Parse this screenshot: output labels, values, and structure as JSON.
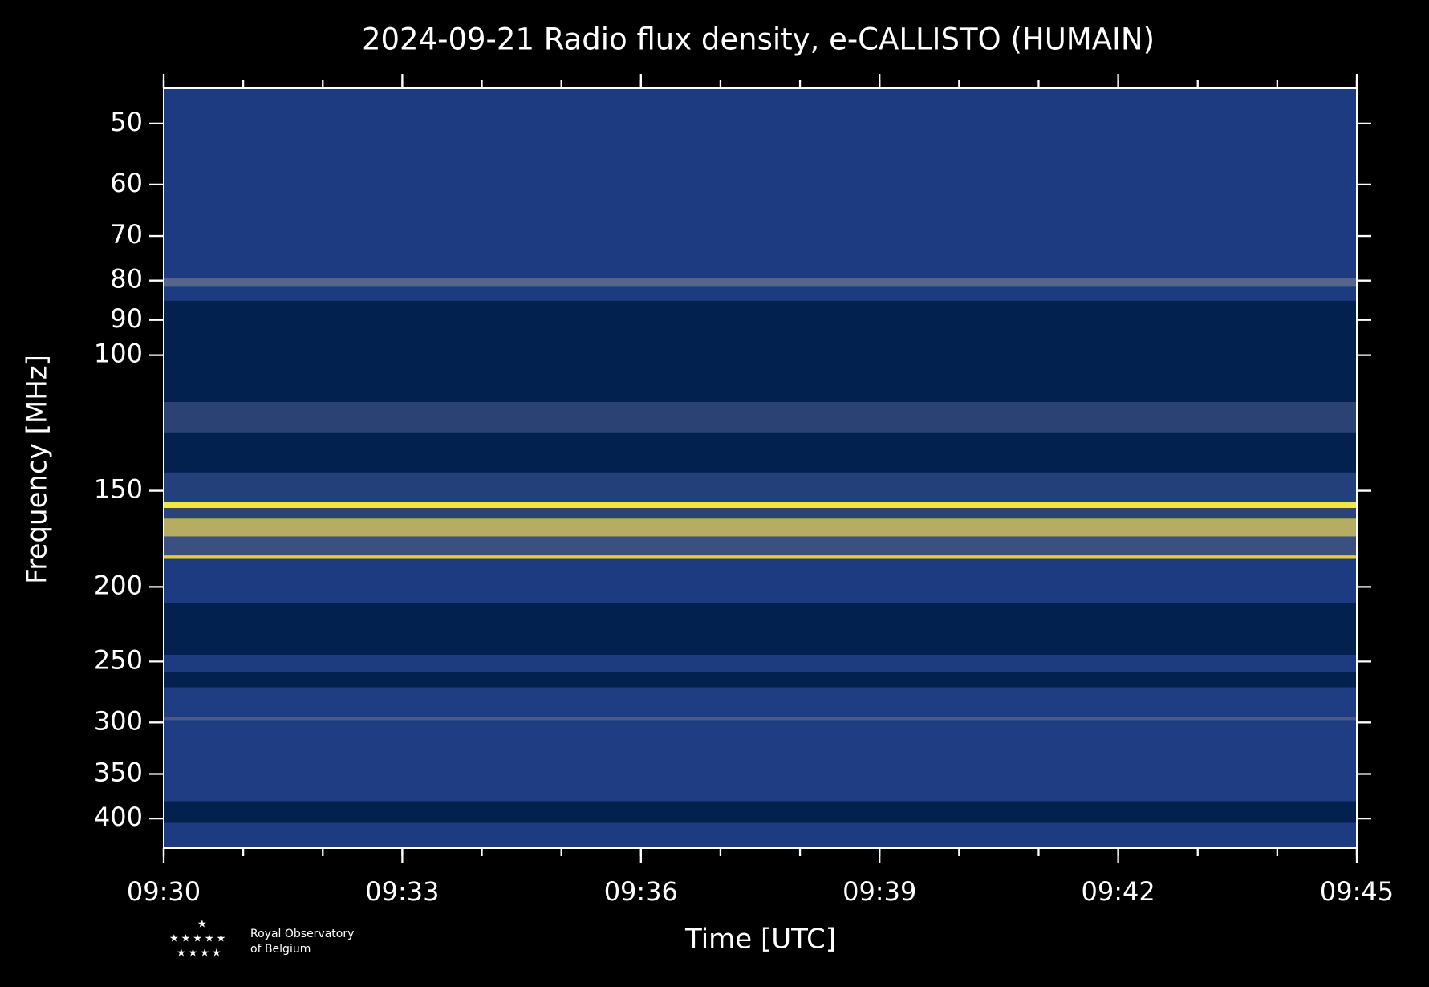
{
  "chart_data": {
    "type": "spectrogram",
    "title": "2024-09-21 Radio flux density, e-CALLISTO (HUMAIN)",
    "x_label": "Time [UTC]",
    "y_label": "Frequency [MHz]",
    "xlim": [
      "09:30",
      "09:45"
    ],
    "xticks": [
      "09:30",
      "09:33",
      "09:36",
      "09:39",
      "09:42",
      "09:45"
    ],
    "ylim": [
      45,
      437
    ],
    "y_inverted": true,
    "y_log": true,
    "yticks": [
      50,
      60,
      70,
      80,
      90,
      100,
      150,
      200,
      250,
      300,
      350,
      400
    ],
    "bands": [
      {
        "freq": [
          45,
          85
        ],
        "color": "#1c3b80"
      },
      {
        "freq": [
          79.5,
          81.5
        ],
        "color": "#56658c"
      },
      {
        "freq": [
          85,
          115
        ],
        "color": "#02214f"
      },
      {
        "freq": [
          115,
          126
        ],
        "color": "#2a4274"
      },
      {
        "freq": [
          126,
          142
        ],
        "color": "#02214f"
      },
      {
        "freq": [
          142,
          155
        ],
        "color": "#24407a"
      },
      {
        "freq": [
          155,
          158
        ],
        "color": "#f2e640"
      },
      {
        "freq": [
          158,
          163
        ],
        "color": "#2a4478"
      },
      {
        "freq": [
          163,
          172
        ],
        "color": "#b4ad62"
      },
      {
        "freq": [
          172,
          182
        ],
        "color": "#3b4f80"
      },
      {
        "freq": [
          182,
          184
        ],
        "color": "#e0d040"
      },
      {
        "freq": [
          184,
          210
        ],
        "color": "#1c3b80"
      },
      {
        "freq": [
          210,
          245
        ],
        "color": "#02214f"
      },
      {
        "freq": [
          245,
          258
        ],
        "color": "#1c3b80"
      },
      {
        "freq": [
          258,
          270
        ],
        "color": "#02214f"
      },
      {
        "freq": [
          270,
          380
        ],
        "color": "#1e3d82"
      },
      {
        "freq": [
          295,
          298
        ],
        "color": "#4a5a88"
      },
      {
        "freq": [
          380,
          405
        ],
        "color": "#02214f"
      },
      {
        "freq": [
          405,
          437
        ],
        "color": "#1c3b80"
      }
    ]
  },
  "logo": {
    "line1": "Royal Observatory",
    "line2": "of Belgium"
  }
}
